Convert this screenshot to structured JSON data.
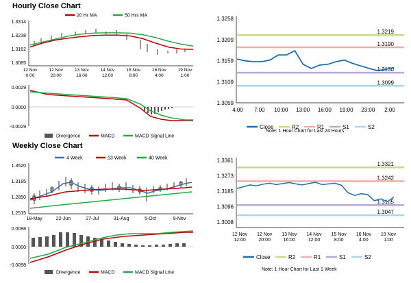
{
  "hourly": {
    "title": "Hourly Close Chart",
    "price": {
      "legend": [
        {
          "name": "20 Hr MA",
          "color": "#c00000"
        },
        {
          "name": "50 Hrs MA",
          "color": "#22aa44"
        }
      ],
      "yticks": [
        "1.3314",
        "1.3238",
        "1.3162",
        "1.3085"
      ],
      "xticks": [
        "12 Nov\n0:00",
        "12 Nov\n20:00",
        "13 Nov\n16:00",
        "14 Nov\n12:00",
        "15 Nov\n8:00",
        "16 Nov\n4:00",
        "19 Nov\n1:00"
      ]
    },
    "macd": {
      "yticks": [
        "0.0029",
        "0.0000",
        "-0.0029"
      ],
      "legend": [
        {
          "name": "Divergence",
          "color": "#555555"
        },
        {
          "name": "MACD",
          "color": "#c00000"
        },
        {
          "name": "MACD Signal Line",
          "color": "#22aa44"
        }
      ]
    }
  },
  "weekly": {
    "title": "Weekly Close Chart",
    "price": {
      "legend": [
        {
          "name": "4 Week",
          "color": "#3a6fb0"
        },
        {
          "name": "13 Week",
          "color": "#c00000"
        },
        {
          "name": "40 Week",
          "color": "#22aa44"
        }
      ],
      "yticks": [
        "1.3520",
        "1.3185",
        "1.2850",
        "1.2515"
      ],
      "xticks": [
        "18-May",
        "22-Jun",
        "27-Jul",
        "31-Aug",
        "5-Oct",
        "9-Nov"
      ]
    },
    "macd": {
      "yticks": [
        "0.0098",
        "0.0000",
        "-0.0098"
      ],
      "legend": [
        {
          "name": "Divergence",
          "color": "#555555"
        },
        {
          "name": "MACD",
          "color": "#c00000"
        },
        {
          "name": "MACD Signal Line",
          "color": "#22aa44"
        }
      ]
    }
  },
  "pivot_hourly": {
    "yticks": [
      "1.3258",
      "1.3209",
      "1.3159",
      "1.3109",
      "1.3059"
    ],
    "xticks": [
      "4:00",
      "7:00",
      "10:00",
      "13:00",
      "16:00",
      "19:00",
      "23:00",
      "2:00"
    ],
    "levels": [
      {
        "name": "R2",
        "value": 1.3219,
        "label": "1.3219",
        "color": "#c8d98a"
      },
      {
        "name": "R1",
        "value": 1.319,
        "label": "1.3190",
        "color": "#f0b0a8"
      },
      {
        "name": "S1",
        "value": 1.313,
        "label": "1.3130",
        "color": "#b8a8d8"
      },
      {
        "name": "S2",
        "value": 1.3099,
        "label": "1.3099",
        "color": "#a8d8e8"
      }
    ],
    "legend": [
      "Close",
      "R2",
      "R1",
      "S1",
      "S2"
    ],
    "note": "Note: 1 Hour Chart for Last 24 Hours"
  },
  "pivot_weekly": {
    "yticks": [
      "1.3361",
      "1.3273",
      "1.3185",
      "1.3096",
      "1.3008"
    ],
    "xticks": [
      "12 Nov\n12:00",
      "12 Nov\n20:00",
      "13 Nov\n16:00",
      "14 Nov\n12:00",
      "15 Nov\n8:00",
      "16 Nov\n4:00",
      "19 Nov\n1:00"
    ],
    "levels": [
      {
        "name": "R2",
        "value": 1.3321,
        "label": "1.3321",
        "color": "#c8d98a"
      },
      {
        "name": "R1",
        "value": 1.3242,
        "label": "1.3242",
        "color": "#f0b0a8"
      },
      {
        "name": "S1",
        "value": 1.3105,
        "label": "1.3105",
        "color": "#b8a8d8"
      },
      {
        "name": "S2",
        "value": 1.3047,
        "label": "1.3047",
        "color": "#a8d8e8"
      }
    ],
    "legend": [
      "Close",
      "R2",
      "R1",
      "S1",
      "S2"
    ],
    "note": "Note: 1 Hour Chart for Last 1 Week"
  },
  "chart_data": [
    {
      "type": "line",
      "ylim": [
        1.3085,
        1.3314
      ],
      "series": [
        {
          "name": "20 Hr MA",
          "values": [
            1.318,
            1.32,
            1.3215,
            1.3225,
            1.3232,
            1.3238,
            1.324,
            1.324,
            1.3236,
            1.3222,
            1.32,
            1.318,
            1.317,
            1.3168
          ]
        },
        {
          "name": "50 Hrs MA",
          "values": [
            1.319,
            1.3205,
            1.322,
            1.3235,
            1.3245,
            1.325,
            1.3252,
            1.3252,
            1.325,
            1.3242,
            1.3228,
            1.321,
            1.3195,
            1.3185
          ]
        }
      ]
    },
    {
      "type": "line",
      "ylim": [
        1.3059,
        1.3258
      ],
      "series": [
        {
          "name": "Close",
          "values": [
            1.3162,
            1.3158,
            1.3156,
            1.3156,
            1.316,
            1.3172,
            1.3172,
            1.3182,
            1.315,
            1.314,
            1.3148,
            1.315,
            1.3156,
            1.316,
            1.3152,
            1.3146,
            1.314,
            1.3135,
            1.3138,
            1.3142
          ]
        }
      ]
    },
    {
      "type": "line",
      "ylim": [
        1.3008,
        1.3361
      ],
      "series": [
        {
          "name": "Close",
          "values": [
            1.32,
            1.321,
            1.322,
            1.3215,
            1.3225,
            1.323,
            1.3222,
            1.3228,
            1.3234,
            1.3226,
            1.322,
            1.3228,
            1.3236,
            1.3222,
            1.3226,
            1.323,
            1.3218,
            1.3175,
            1.316,
            1.317,
            1.3165,
            1.313,
            1.314,
            1.3125,
            1.315
          ]
        }
      ]
    }
  ]
}
